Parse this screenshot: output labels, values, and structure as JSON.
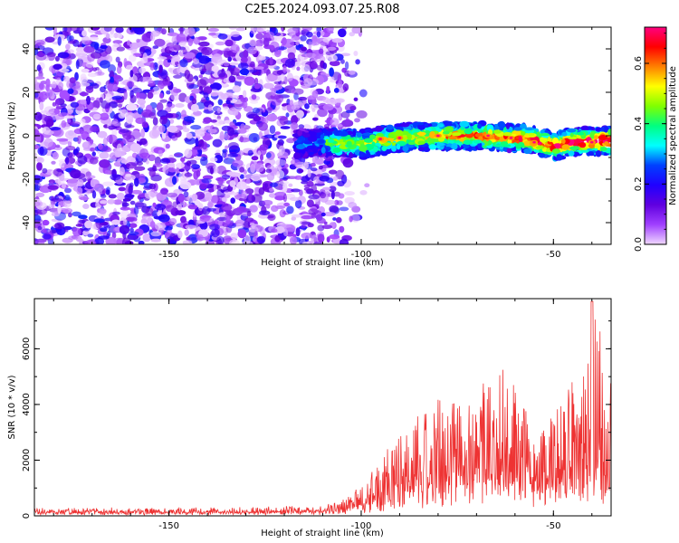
{
  "figure": {
    "title": "C2E5.2024.093.07.25.R08"
  },
  "chart_data": [
    {
      "type": "heatmap",
      "xlabel": "Height of straight line (km)",
      "ylabel": "Frequency (Hz)",
      "xlim": [
        -185,
        -35
      ],
      "ylim": [
        -50,
        50
      ],
      "xticks": [
        -150,
        -100,
        -50
      ],
      "xtick_labels": [
        "-150",
        "-100",
        "-50"
      ],
      "yticks": [
        -40,
        -20,
        0,
        20,
        40
      ],
      "ytick_labels": [
        "-40",
        "-20",
        "0",
        "20",
        "40"
      ],
      "colorbar": {
        "label": "Normalized spectral amplitude",
        "range": [
          0,
          0.72
        ],
        "ticks": [
          0,
          0.2,
          0.4,
          0.6
        ],
        "tick_labels": [
          "0.0",
          "0.2",
          "0.4",
          "0.6"
        ],
        "colormap": [
          "#f0d8ff",
          "#a040ff",
          "#6000e0",
          "#2000ff",
          "#0040ff",
          "#00ffff",
          "#00ff80",
          "#80ff00",
          "#ffff00",
          "#ff8000",
          "#ff0000",
          "#ff0080"
        ]
      },
      "features": {
        "noise_region_x": [
          -185,
          -110
        ],
        "noise_fade_x": [
          -110,
          -98
        ],
        "signal_band_x": [
          -117,
          -35
        ],
        "signal_center_hz": [
          [
            -117,
            -4
          ],
          [
            -110,
            -3
          ],
          [
            -100,
            -4
          ],
          [
            -90,
            -1
          ],
          [
            -80,
            0
          ],
          [
            -70,
            0
          ],
          [
            -60,
            -1
          ],
          [
            -55,
            -2
          ],
          [
            -50,
            -5
          ],
          [
            -45,
            -3
          ],
          [
            -35,
            -2
          ]
        ],
        "signal_halfwidth_hz": 6
      }
    },
    {
      "type": "line",
      "xlabel": "Height of straight line (km)",
      "ylabel": "SNR (10 * v/v)",
      "xlim": [
        -185,
        -35
      ],
      "ylim": [
        0,
        7800
      ],
      "xticks": [
        -150,
        -100,
        -50
      ],
      "xtick_labels": [
        "-150",
        "-100",
        "-50"
      ],
      "yticks": [
        0,
        2000,
        4000,
        6000
      ],
      "ytick_labels": [
        "0",
        "2000",
        "4000",
        "6000"
      ],
      "color": "#ee3333",
      "envelope": {
        "x": [
          -185,
          -160,
          -130,
          -110,
          -104,
          -100,
          -95,
          -90,
          -85,
          -80,
          -75,
          -70,
          -65,
          -60,
          -55,
          -50,
          -45,
          -40,
          -35
        ],
        "baseline": [
          100,
          100,
          100,
          120,
          200,
          300,
          400,
          600,
          800,
          1000,
          1100,
          1100,
          1200,
          1100,
          900,
          800,
          900,
          1100,
          1200
        ],
        "peak": [
          300,
          300,
          300,
          420,
          700,
          1100,
          2000,
          3000,
          3500,
          4300,
          4200,
          4100,
          5500,
          4700,
          3200,
          3600,
          5000,
          7000,
          6600
        ]
      }
    }
  ]
}
